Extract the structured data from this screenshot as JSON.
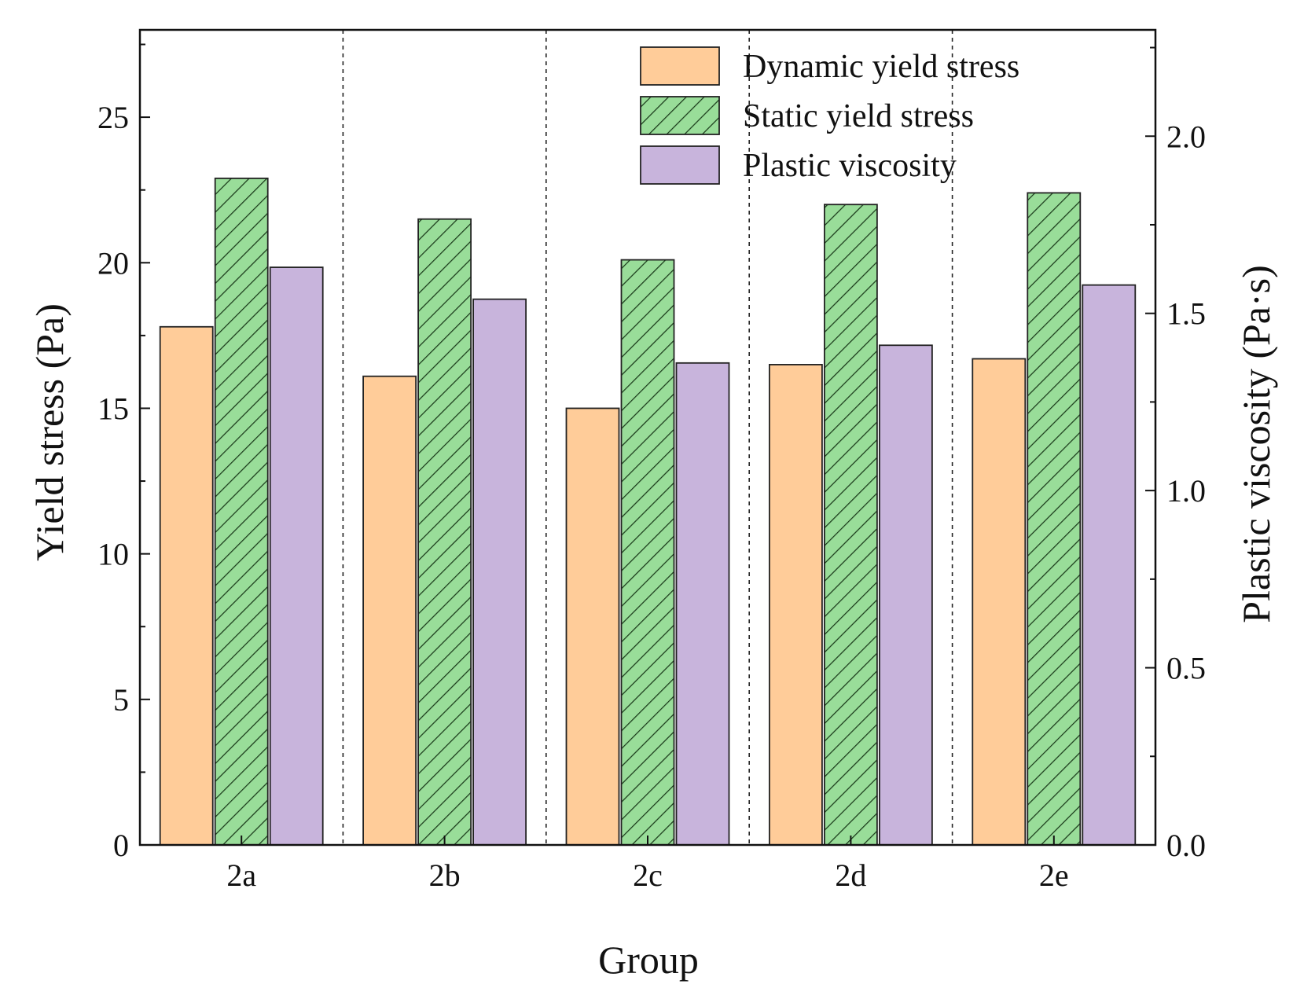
{
  "chart_data": {
    "type": "bar",
    "title": "",
    "xlabel": "Group",
    "ylabel": "Yield stress (Pa)",
    "y2label": "Plastic viscosity (Pa·s)",
    "categories": [
      "2a",
      "2b",
      "2c",
      "2d",
      "2e"
    ],
    "ylim": [
      0,
      28
    ],
    "y2lim": [
      0,
      2.3
    ],
    "yticks": [
      0,
      5,
      10,
      15,
      20,
      25
    ],
    "y2ticks": [
      0.0,
      0.5,
      1.0,
      1.5,
      2.0
    ],
    "ytick_labels": [
      "0",
      "5",
      "10",
      "15",
      "20",
      "25"
    ],
    "y2tick_labels": [
      "0.0",
      "0.5",
      "1.0",
      "1.5",
      "2.0"
    ],
    "group_separators": "dotted",
    "legend_position": "top-right",
    "series": [
      {
        "name": "Dynamic yield stress",
        "axis": "left",
        "color": "#FFCC99",
        "pattern": "solid",
        "values": [
          17.8,
          16.1,
          15.0,
          16.5,
          16.7
        ]
      },
      {
        "name": "Static yield stress",
        "axis": "left",
        "color": "#99DD99",
        "pattern": "hatched",
        "values": [
          22.9,
          21.5,
          20.1,
          22.0,
          22.4
        ]
      },
      {
        "name": "Plastic viscosity",
        "axis": "right",
        "color": "#C8B4DC",
        "pattern": "solid",
        "values": [
          1.63,
          1.54,
          1.36,
          1.41,
          1.58
        ]
      }
    ]
  }
}
